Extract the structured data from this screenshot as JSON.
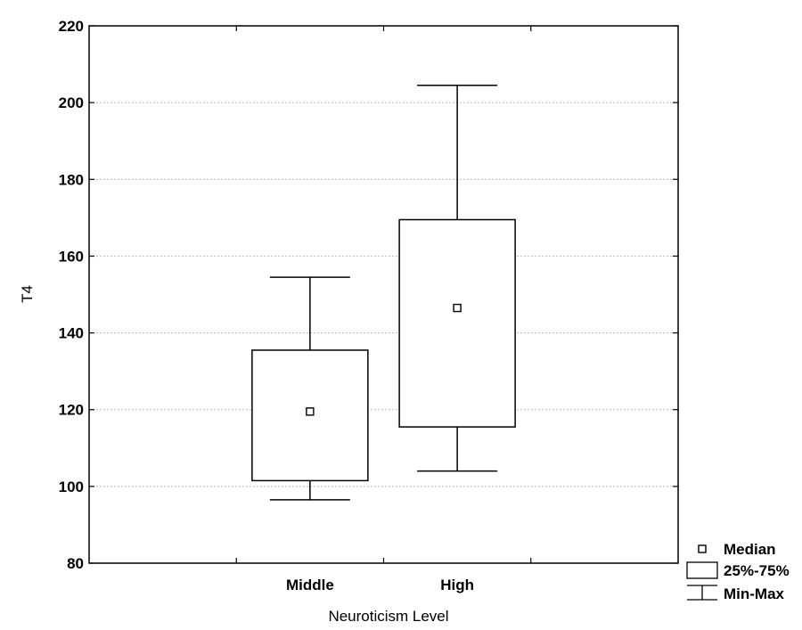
{
  "chart_data": {
    "type": "boxplot",
    "xlabel": "Neuroticism Level",
    "ylabel": "T4",
    "ylim": [
      80,
      220
    ],
    "yticks": [
      80,
      100,
      120,
      140,
      160,
      180,
      200,
      220
    ],
    "grid": true,
    "categories": [
      "Middle",
      "High"
    ],
    "boxes": [
      {
        "category": "Middle",
        "min": 96.5,
        "q1": 101.5,
        "median": 119.5,
        "q3": 135.5,
        "max": 154.5
      },
      {
        "category": "High",
        "min": 104,
        "q1": 115.5,
        "median": 146.5,
        "q3": 169.5,
        "max": 204.5
      }
    ],
    "legend": {
      "position": "bottom-right",
      "entries": [
        {
          "key": "median",
          "label": "Median"
        },
        {
          "key": "box",
          "label": "25%-75%"
        },
        {
          "key": "range",
          "label": "Min-Max"
        }
      ]
    }
  }
}
